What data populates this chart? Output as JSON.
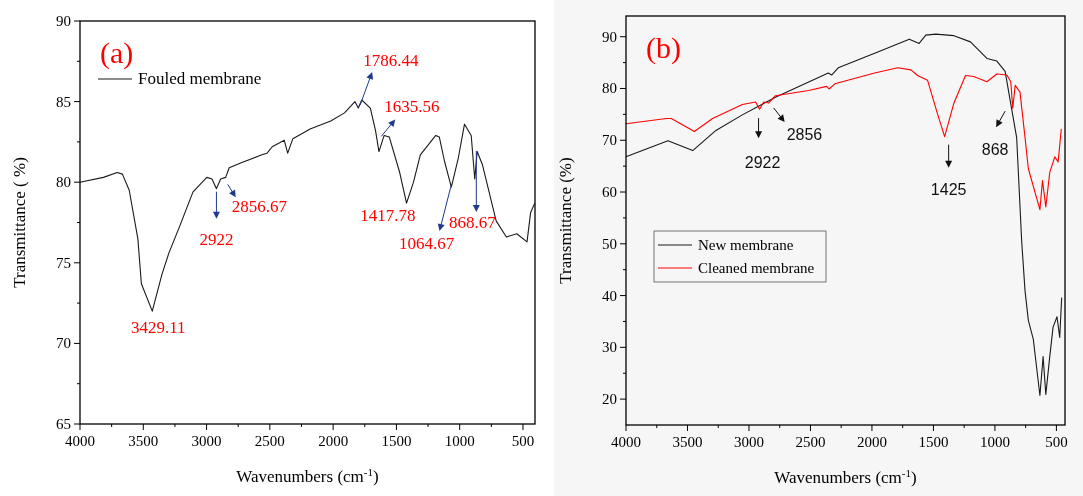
{
  "chart_data": [
    {
      "type": "line",
      "xlabel": "Wavenumbers (cm$^{-1}$)",
      "ylabel": "Transmittance ( %)",
      "xlim": [
        4000,
        405
      ],
      "ylim": [
        65,
        90
      ],
      "xticks": [
        4000,
        {
          "value": 3750,
          "label": null
        },
        3500,
        {
          "value": 3250,
          "label": null
        },
        3000,
        {
          "value": 2750,
          "label": null
        },
        2500,
        {
          "value": 2250,
          "label": null
        },
        2000,
        {
          "value": 1750,
          "label": null
        },
        1500,
        {
          "value": 1250,
          "label": null
        },
        1000,
        {
          "value": 750,
          "label": null
        },
        500
      ],
      "yticks": [
        65,
        {
          "value": 67.5,
          "label": null
        },
        70,
        {
          "value": 72.5,
          "label": null
        },
        75,
        {
          "value": 77.5,
          "label": null
        },
        80,
        {
          "value": 82.5,
          "label": null
        },
        85,
        {
          "value": 87.5,
          "label": null
        },
        90
      ],
      "legend": "top left",
      "series": [
        {
          "name": "Fouled membrane",
          "color": "#1a1a1a",
          "x": [
            4000,
            3815,
            3706,
            3665,
            3611,
            3543,
            3515,
            3429,
            3352,
            3298,
            3216,
            3107,
            2998,
            2957,
            2922,
            2889,
            2849,
            2821,
            2726,
            2563,
            2522,
            2481,
            2386,
            2359,
            2318,
            2182,
            2019,
            1910,
            1828,
            1801,
            1774,
            1706,
            1665,
            1638,
            1597,
            1556,
            1474,
            1420,
            1365,
            1311,
            1189,
            1161,
            1120,
            1066,
            1011,
            962,
            909,
            881,
            862,
            821,
            712,
            631,
            549,
            468,
            440,
            407
          ],
          "values": [
            80.0,
            80.3,
            80.6,
            80.5,
            79.5,
            76.5,
            73.7,
            72.0,
            74.3,
            75.6,
            77.2,
            79.4,
            80.3,
            80.2,
            79.6,
            80.2,
            80.3,
            80.9,
            81.2,
            81.7,
            81.8,
            82.2,
            82.6,
            81.8,
            82.7,
            83.3,
            83.8,
            84.3,
            85.0,
            84.6,
            85.1,
            84.6,
            83.2,
            81.9,
            82.9,
            82.8,
            80.6,
            78.7,
            80.0,
            81.7,
            82.9,
            82.8,
            81.3,
            79.7,
            81.5,
            83.6,
            82.9,
            80.2,
            81.9,
            81.1,
            77.6,
            76.6,
            76.8,
            76.3,
            78.1,
            78.7
          ]
        }
      ],
      "annotations": [
        "(a)",
        {
          "text": "3429.11",
          "x": 3429.11,
          "y": 72.0
        },
        {
          "text": "2922",
          "x": 2922,
          "y": 79.6
        },
        {
          "text": "2856.67",
          "x": 2856.67,
          "y": 80.3
        },
        {
          "text": "1786.44",
          "x": 1786.44,
          "y": 84.6
        },
        {
          "text": "1635.56",
          "x": 1635.56,
          "y": 82.9
        },
        {
          "text": "1417.78",
          "x": 1417.78,
          "y": 78.7
        },
        {
          "text": "1064.67",
          "x": 1064.67,
          "y": 79.7
        },
        {
          "text": "868.67",
          "x": 868.67,
          "y": 80.2
        }
      ]
    },
    {
      "type": "line",
      "xlabel": "Wavenumbers (cm$^{-1}$)",
      "ylabel": "Transmittance (%)",
      "xlim": [
        4000,
        430
      ],
      "ylim": [
        15,
        94
      ],
      "xticks": [
        4000,
        {
          "value": 3750,
          "label": null
        },
        3500,
        {
          "value": 3250,
          "label": null
        },
        3000,
        {
          "value": 2750,
          "label": null
        },
        2500,
        {
          "value": 2250,
          "label": null
        },
        2000,
        {
          "value": 1750,
          "label": null
        },
        1500,
        {
          "value": 1250,
          "label": null
        },
        1000,
        {
          "value": 750,
          "label": null
        },
        500
      ],
      "yticks": [
        20,
        {
          "value": 25,
          "label": null
        },
        30,
        {
          "value": 35,
          "label": null
        },
        40,
        {
          "value": 45,
          "label": null
        },
        50,
        {
          "value": 55,
          "label": null
        },
        60,
        {
          "value": 65,
          "label": null
        },
        70,
        {
          "value": 75,
          "label": null
        },
        80,
        {
          "value": 85,
          "label": null
        },
        90
      ],
      "legend": "left",
      "series": [
        {
          "name": "New membrane",
          "color": "#1a1a1a",
          "x": [
            4000,
            3659,
            3457,
            3269,
            3054,
            2919,
            2785,
            2355,
            2328,
            2274,
            1978,
            1696,
            1616,
            1562,
            1481,
            1333,
            1199,
            1065,
            984,
            917,
            823,
            782,
            755,
            728,
            688,
            634,
            608,
            586,
            554,
            527,
            495,
            473,
            457
          ],
          "values": [
            66.8,
            69.9,
            68.0,
            71.9,
            74.9,
            76.6,
            78.3,
            83.0,
            82.6,
            84.0,
            86.8,
            89.5,
            88.7,
            90.3,
            90.5,
            90.2,
            89.0,
            85.8,
            85.3,
            83.3,
            70.5,
            50.4,
            40.9,
            35.2,
            31.6,
            20.7,
            28.2,
            20.9,
            28.2,
            33.9,
            35.9,
            31.9,
            39.6
          ]
        },
        {
          "name": "Cleaned membrane",
          "color": "#ff0000",
          "x": [
            4000,
            3672,
            3632,
            3444,
            3296,
            3054,
            2946,
            2914,
            2879,
            2839,
            2785,
            2516,
            2368,
            2349,
            2301,
            1978,
            1790,
            1683,
            1629,
            1548,
            1468,
            1409,
            1333,
            1239,
            1172,
            1065,
            984,
            903,
            871,
            855,
            835,
            796,
            755,
            728,
            634,
            613,
            586,
            554,
            513,
            486,
            460
          ],
          "values": [
            73.2,
            74.2,
            74.2,
            71.7,
            74.2,
            76.9,
            77.4,
            76.0,
            77.4,
            77.2,
            78.6,
            79.6,
            80.4,
            79.9,
            80.9,
            83.0,
            84.0,
            83.6,
            82.5,
            81.6,
            75.2,
            70.7,
            77.2,
            82.5,
            82.3,
            81.3,
            82.8,
            82.6,
            81.3,
            76.2,
            80.6,
            79.3,
            70.5,
            64.5,
            56.6,
            62.2,
            57.1,
            63.8,
            66.8,
            65.8,
            72.2
          ]
        }
      ],
      "annotations": [
        "(b)",
        {
          "text": "2922",
          "x": 2922,
          "y": 76.2
        },
        {
          "text": "2856",
          "x": 2856,
          "y": 77.2
        },
        {
          "text": "1425",
          "x": 1425,
          "y": 70.7
        },
        {
          "text": "868",
          "x": 868,
          "y": 76.2
        }
      ]
    }
  ]
}
